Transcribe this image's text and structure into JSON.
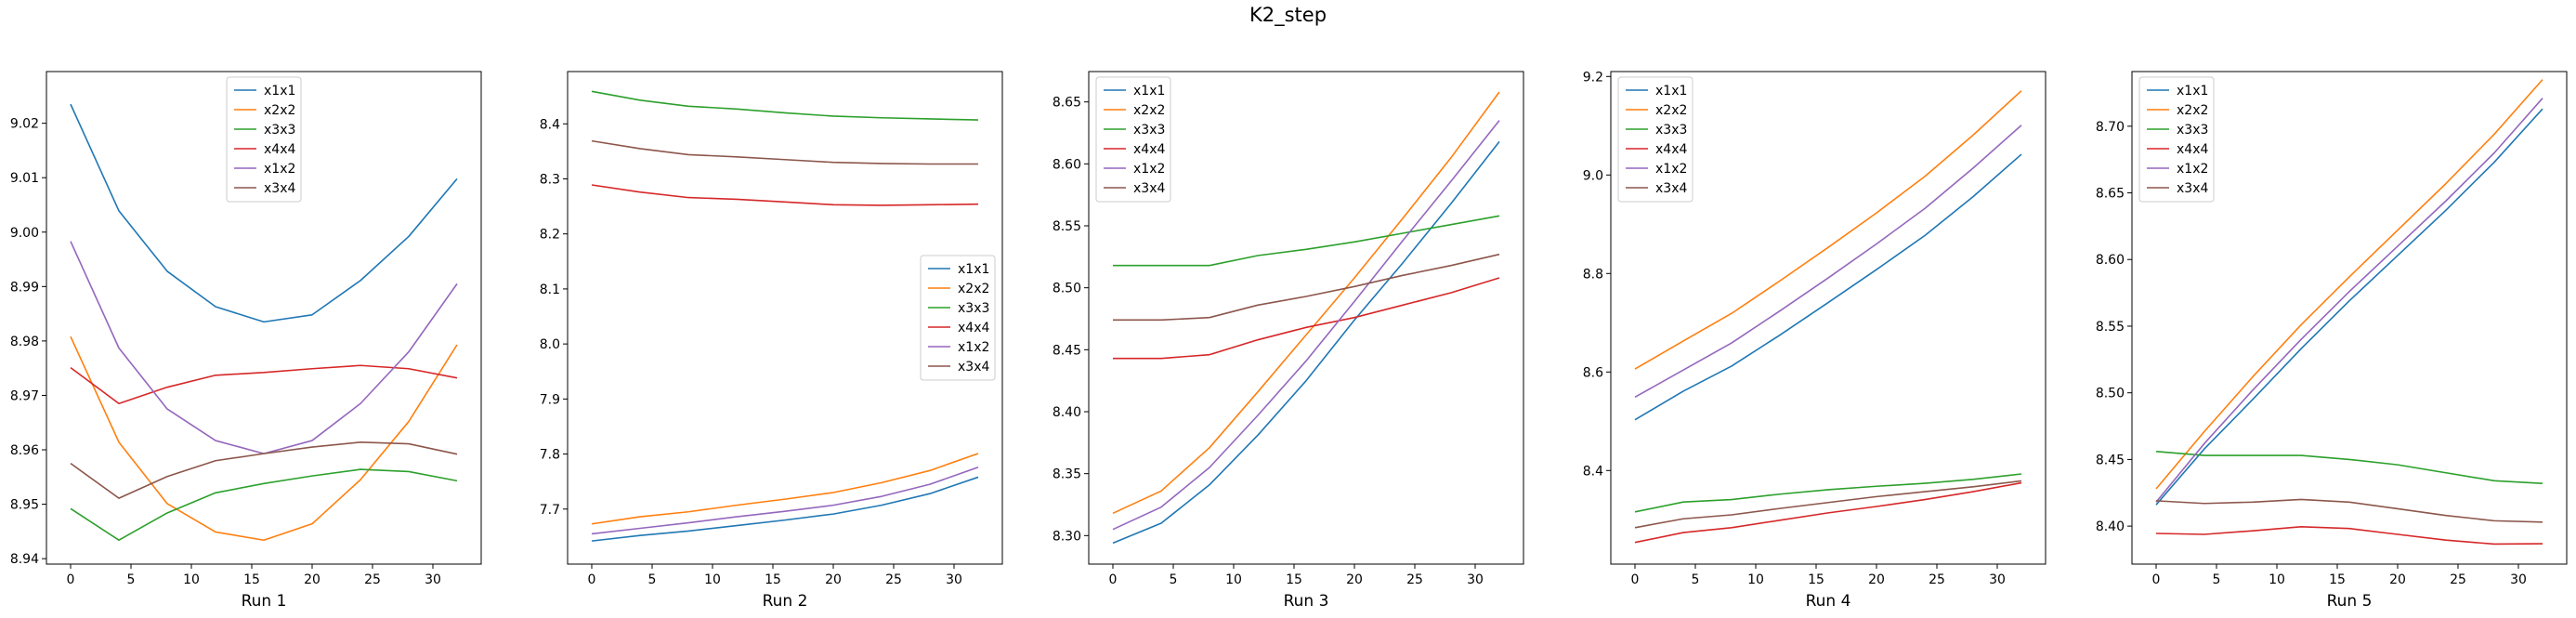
{
  "figure": {
    "title": "K2_step"
  },
  "chart_data": [
    {
      "type": "line",
      "xlabel": "Run 1",
      "ylabel": "",
      "x": [
        0,
        4,
        8,
        12,
        16,
        20,
        24,
        28,
        32
      ],
      "xticks": [
        0,
        5,
        10,
        15,
        20,
        25,
        30
      ],
      "xlim": [
        -2,
        34
      ],
      "ylim": [
        8.939,
        9.0295
      ],
      "yticks": [
        8.94,
        8.95,
        8.96,
        8.97,
        8.98,
        8.99,
        9.0,
        9.01,
        9.02
      ],
      "ytick_labels": [
        "8.94",
        "8.95",
        "8.96",
        "8.97",
        "8.98",
        "8.99",
        "9.00",
        "9.01",
        "9.02"
      ],
      "legend": "upper center",
      "series": [
        {
          "name": "x1x1",
          "color": "#1f77b4",
          "values": [
            9.0235,
            9.0039,
            8.9928,
            8.9863,
            8.9835,
            8.9848,
            8.9911,
            8.9992,
            9.0098
          ]
        },
        {
          "name": "x2x2",
          "color": "#ff7f0e",
          "values": [
            8.9808,
            8.9614,
            8.9501,
            8.9449,
            8.9434,
            8.9464,
            8.9545,
            8.9652,
            8.9793
          ]
        },
        {
          "name": "x3x3",
          "color": "#2ca02c",
          "values": [
            8.9492,
            8.9434,
            8.9484,
            8.9521,
            8.9538,
            8.9552,
            8.9564,
            8.956,
            8.9543
          ]
        },
        {
          "name": "x4x4",
          "color": "#d62728",
          "values": [
            8.9751,
            8.9685,
            8.9715,
            8.9737,
            8.9742,
            8.9749,
            8.9755,
            8.9749,
            8.9732
          ]
        },
        {
          "name": "x1x2",
          "color": "#9467bd",
          "values": [
            8.9983,
            8.9787,
            8.9675,
            8.9617,
            8.9593,
            8.9617,
            8.9685,
            8.978,
            8.9905
          ]
        },
        {
          "name": "x3x4",
          "color": "#8c564b",
          "values": [
            8.9575,
            8.9511,
            8.9551,
            8.958,
            8.9593,
            8.9605,
            8.9614,
            8.9611,
            8.9592
          ]
        }
      ]
    },
    {
      "type": "line",
      "xlabel": "Run 2",
      "ylabel": "",
      "x": [
        0,
        4,
        8,
        12,
        16,
        20,
        24,
        28,
        32
      ],
      "xticks": [
        0,
        5,
        10,
        15,
        20,
        25,
        30
      ],
      "xlim": [
        -2,
        34
      ],
      "ylim": [
        7.6,
        8.495
      ],
      "yticks": [
        7.7,
        7.8,
        7.9,
        8.0,
        8.1,
        8.2,
        8.3,
        8.4
      ],
      "ytick_labels": [
        "7.7",
        "7.8",
        "7.9",
        "8.0",
        "8.1",
        "8.2",
        "8.3",
        "8.4"
      ],
      "legend": "center right",
      "series": [
        {
          "name": "x1x1",
          "color": "#1f77b4",
          "values": [
            7.642,
            7.652,
            7.66,
            7.67,
            7.68,
            7.691,
            7.707,
            7.728,
            7.758
          ]
        },
        {
          "name": "x2x2",
          "color": "#ff7f0e",
          "values": [
            7.673,
            7.686,
            7.695,
            7.707,
            7.718,
            7.73,
            7.748,
            7.77,
            7.801
          ]
        },
        {
          "name": "x3x3",
          "color": "#2ca02c",
          "values": [
            8.459,
            8.443,
            8.432,
            8.427,
            8.42,
            8.414,
            8.411,
            8.409,
            8.407
          ]
        },
        {
          "name": "x4x4",
          "color": "#d62728",
          "values": [
            8.289,
            8.276,
            8.266,
            8.263,
            8.258,
            8.253,
            8.252,
            8.253,
            8.254
          ]
        },
        {
          "name": "x1x2",
          "color": "#9467bd",
          "values": [
            7.655,
            7.665,
            7.675,
            7.686,
            7.696,
            7.707,
            7.723,
            7.745,
            7.776
          ]
        },
        {
          "name": "x3x4",
          "color": "#8c564b",
          "values": [
            8.369,
            8.355,
            8.344,
            8.34,
            8.335,
            8.33,
            8.328,
            8.327,
            8.327
          ]
        }
      ]
    },
    {
      "type": "line",
      "xlabel": "Run 3",
      "ylabel": "",
      "x": [
        0,
        4,
        8,
        12,
        16,
        20,
        24,
        28,
        32
      ],
      "xticks": [
        0,
        5,
        10,
        15,
        20,
        25,
        30
      ],
      "xlim": [
        -2,
        34
      ],
      "ylim": [
        8.277,
        8.6745
      ],
      "yticks": [
        8.3,
        8.35,
        8.4,
        8.45,
        8.5,
        8.55,
        8.6,
        8.65
      ],
      "ytick_labels": [
        "8.30",
        "8.35",
        "8.40",
        "8.45",
        "8.50",
        "8.55",
        "8.60",
        "8.65"
      ],
      "legend": "upper left",
      "series": [
        {
          "name": "x1x1",
          "color": "#1f77b4",
          "values": [
            8.294,
            8.31,
            8.341,
            8.381,
            8.425,
            8.474,
            8.52,
            8.568,
            8.618
          ]
        },
        {
          "name": "x2x2",
          "color": "#ff7f0e",
          "values": [
            8.318,
            8.336,
            8.371,
            8.416,
            8.462,
            8.508,
            8.556,
            8.605,
            8.658
          ]
        },
        {
          "name": "x3x3",
          "color": "#2ca02c",
          "values": [
            8.518,
            8.518,
            8.518,
            8.526,
            8.531,
            8.537,
            8.544,
            8.551,
            8.558
          ]
        },
        {
          "name": "x4x4",
          "color": "#d62728",
          "values": [
            8.443,
            8.443,
            8.446,
            8.458,
            8.468,
            8.476,
            8.486,
            8.496,
            8.508
          ]
        },
        {
          "name": "x1x2",
          "color": "#9467bd",
          "values": [
            8.305,
            8.323,
            8.355,
            8.397,
            8.441,
            8.489,
            8.538,
            8.586,
            8.635
          ]
        },
        {
          "name": "x3x4",
          "color": "#8c564b",
          "values": [
            8.474,
            8.474,
            8.476,
            8.486,
            8.493,
            8.501,
            8.51,
            8.518,
            8.527
          ]
        }
      ]
    },
    {
      "type": "line",
      "xlabel": "Run 4",
      "ylabel": "",
      "x": [
        0,
        4,
        8,
        12,
        16,
        20,
        24,
        28,
        32
      ],
      "xticks": [
        0,
        5,
        10,
        15,
        20,
        25,
        30
      ],
      "xlim": [
        -2,
        34
      ],
      "ylim": [
        8.21,
        9.21
      ],
      "yticks": [
        8.4,
        8.6,
        8.8,
        9.0,
        9.2
      ],
      "ytick_labels": [
        "8.4",
        "8.6",
        "8.8",
        "9.0",
        "9.2"
      ],
      "legend": "upper left",
      "series": [
        {
          "name": "x1x1",
          "color": "#1f77b4",
          "values": [
            8.503,
            8.561,
            8.612,
            8.675,
            8.741,
            8.808,
            8.877,
            8.956,
            9.042
          ]
        },
        {
          "name": "x2x2",
          "color": "#ff7f0e",
          "values": [
            8.606,
            8.663,
            8.719,
            8.785,
            8.853,
            8.923,
            8.997,
            9.081,
            9.171
          ]
        },
        {
          "name": "x3x3",
          "color": "#2ca02c",
          "values": [
            8.316,
            8.336,
            8.341,
            8.352,
            8.361,
            8.368,
            8.374,
            8.382,
            8.393
          ]
        },
        {
          "name": "x4x4",
          "color": "#d62728",
          "values": [
            8.254,
            8.274,
            8.284,
            8.299,
            8.314,
            8.327,
            8.341,
            8.357,
            8.375
          ]
        },
        {
          "name": "x1x2",
          "color": "#9467bd",
          "values": [
            8.549,
            8.604,
            8.659,
            8.724,
            8.791,
            8.86,
            8.932,
            9.014,
            9.101
          ]
        },
        {
          "name": "x3x4",
          "color": "#8c564b",
          "values": [
            8.284,
            8.302,
            8.31,
            8.323,
            8.335,
            8.347,
            8.357,
            8.367,
            8.379
          ]
        }
      ]
    },
    {
      "type": "line",
      "xlabel": "Run 5",
      "ylabel": "",
      "x": [
        0,
        4,
        8,
        12,
        16,
        20,
        24,
        28,
        32
      ],
      "xticks": [
        0,
        5,
        10,
        15,
        20,
        25,
        30
      ],
      "xlim": [
        -2,
        34
      ],
      "ylim": [
        8.3715,
        8.741
      ],
      "yticks": [
        8.4,
        8.45,
        8.5,
        8.55,
        8.6,
        8.65,
        8.7
      ],
      "ytick_labels": [
        "8.40",
        "8.45",
        "8.50",
        "8.55",
        "8.60",
        "8.65",
        "8.70"
      ],
      "legend": "upper left",
      "series": [
        {
          "name": "x1x1",
          "color": "#1f77b4",
          "values": [
            8.416,
            8.458,
            8.495,
            8.533,
            8.569,
            8.603,
            8.637,
            8.673,
            8.713
          ]
        },
        {
          "name": "x2x2",
          "color": "#ff7f0e",
          "values": [
            8.428,
            8.471,
            8.512,
            8.551,
            8.587,
            8.622,
            8.657,
            8.694,
            8.735
          ]
        },
        {
          "name": "x3x3",
          "color": "#2ca02c",
          "values": [
            8.456,
            8.453,
            8.453,
            8.453,
            8.45,
            8.446,
            8.44,
            8.434,
            8.432
          ]
        },
        {
          "name": "x4x4",
          "color": "#d62728",
          "values": [
            8.3945,
            8.3938,
            8.3965,
            8.3995,
            8.3982,
            8.3938,
            8.3895,
            8.3865,
            8.3868
          ]
        },
        {
          "name": "x1x2",
          "color": "#9467bd",
          "values": [
            8.418,
            8.462,
            8.502,
            8.54,
            8.576,
            8.61,
            8.644,
            8.68,
            8.721
          ]
        },
        {
          "name": "x3x4",
          "color": "#8c564b",
          "values": [
            8.419,
            8.417,
            8.418,
            8.42,
            8.418,
            8.413,
            8.408,
            8.404,
            8.403
          ]
        }
      ]
    }
  ]
}
